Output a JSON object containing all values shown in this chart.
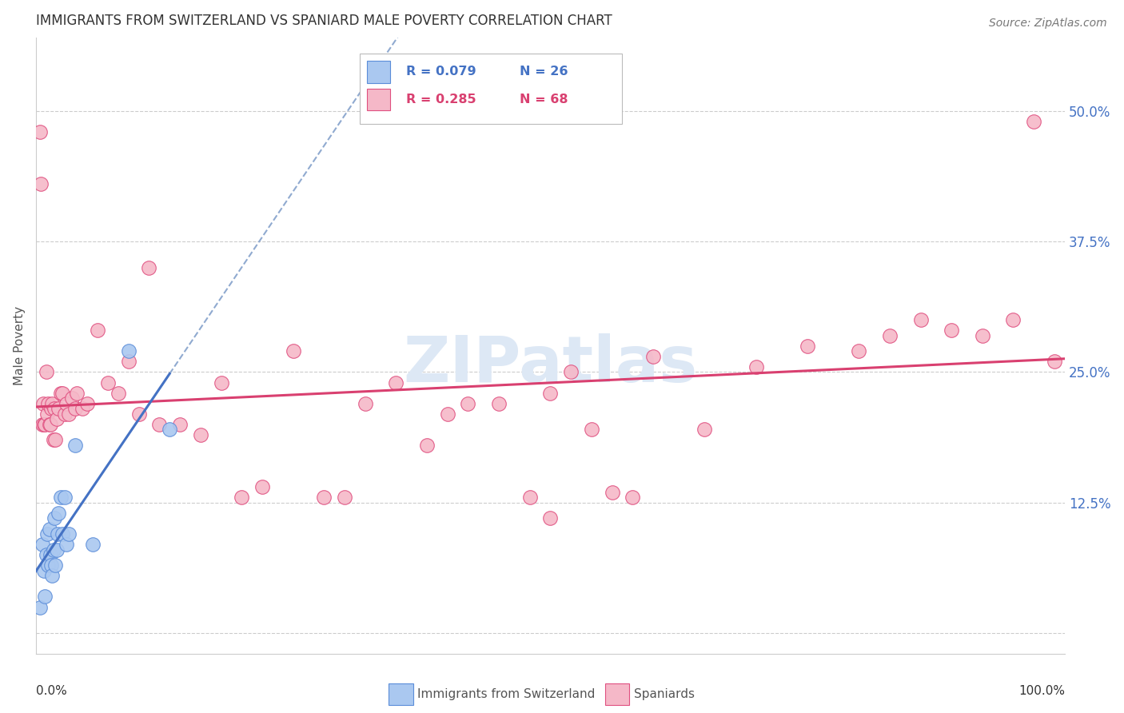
{
  "title": "IMMIGRANTS FROM SWITZERLAND VS SPANIARD MALE POVERTY CORRELATION CHART",
  "source": "Source: ZipAtlas.com",
  "ylabel": "Male Poverty",
  "yticks": [
    0.0,
    0.125,
    0.25,
    0.375,
    0.5
  ],
  "ytick_labels": [
    "",
    "12.5%",
    "25.0%",
    "37.5%",
    "50.0%"
  ],
  "xlim": [
    0.0,
    1.0
  ],
  "ylim": [
    -0.02,
    0.57
  ],
  "color_swiss_fill": "#aac8f0",
  "color_swiss_edge": "#5b8dd9",
  "color_spaniard_fill": "#f5b8c8",
  "color_spaniard_edge": "#e05080",
  "color_swiss_line": "#4472c4",
  "color_spaniard_line": "#d94070",
  "color_dashed": "#90aad0",
  "watermark_color": "#dde8f5",
  "swiss_x": [
    0.004,
    0.006,
    0.008,
    0.009,
    0.01,
    0.011,
    0.012,
    0.013,
    0.014,
    0.015,
    0.016,
    0.017,
    0.018,
    0.019,
    0.02,
    0.021,
    0.022,
    0.024,
    0.026,
    0.028,
    0.03,
    0.032,
    0.038,
    0.055,
    0.09,
    0.13
  ],
  "swiss_y": [
    0.025,
    0.085,
    0.06,
    0.035,
    0.075,
    0.095,
    0.065,
    0.1,
    0.075,
    0.065,
    0.055,
    0.08,
    0.11,
    0.065,
    0.08,
    0.095,
    0.115,
    0.13,
    0.095,
    0.13,
    0.085,
    0.095,
    0.18,
    0.085,
    0.27,
    0.195
  ],
  "spaniard_x": [
    0.004,
    0.005,
    0.006,
    0.007,
    0.008,
    0.009,
    0.01,
    0.011,
    0.012,
    0.013,
    0.014,
    0.015,
    0.016,
    0.017,
    0.018,
    0.019,
    0.02,
    0.022,
    0.024,
    0.026,
    0.028,
    0.03,
    0.032,
    0.035,
    0.038,
    0.04,
    0.045,
    0.05,
    0.06,
    0.07,
    0.08,
    0.09,
    0.1,
    0.11,
    0.12,
    0.14,
    0.16,
    0.18,
    0.2,
    0.22,
    0.25,
    0.28,
    0.3,
    0.32,
    0.35,
    0.38,
    0.4,
    0.42,
    0.45,
    0.48,
    0.5,
    0.52,
    0.54,
    0.56,
    0.58,
    0.6,
    0.65,
    0.7,
    0.75,
    0.8,
    0.83,
    0.86,
    0.89,
    0.92,
    0.95,
    0.97,
    0.99,
    0.5
  ],
  "spaniard_y": [
    0.48,
    0.43,
    0.2,
    0.22,
    0.2,
    0.2,
    0.25,
    0.21,
    0.22,
    0.2,
    0.2,
    0.215,
    0.22,
    0.185,
    0.215,
    0.185,
    0.205,
    0.215,
    0.23,
    0.23,
    0.21,
    0.22,
    0.21,
    0.225,
    0.215,
    0.23,
    0.215,
    0.22,
    0.29,
    0.24,
    0.23,
    0.26,
    0.21,
    0.35,
    0.2,
    0.2,
    0.19,
    0.24,
    0.13,
    0.14,
    0.27,
    0.13,
    0.13,
    0.22,
    0.24,
    0.18,
    0.21,
    0.22,
    0.22,
    0.13,
    0.23,
    0.25,
    0.195,
    0.135,
    0.13,
    0.265,
    0.195,
    0.255,
    0.275,
    0.27,
    0.285,
    0.3,
    0.29,
    0.285,
    0.3,
    0.49,
    0.26,
    0.11
  ],
  "legend_r1": "R = 0.079",
  "legend_n1": "N = 26",
  "legend_r2": "R = 0.285",
  "legend_n2": "N = 68"
}
